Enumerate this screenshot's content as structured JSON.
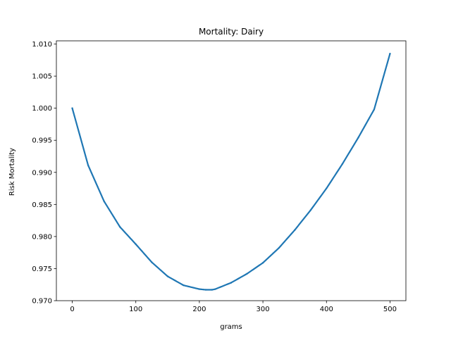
{
  "chart_data": {
    "type": "scatter",
    "title": "Mortality: Dairy",
    "xlabel": "grams",
    "ylabel": "Risk Mortality",
    "xlim": [
      -25,
      525
    ],
    "ylim": [
      0.97,
      1.0105
    ],
    "xticks": [
      0,
      100,
      200,
      300,
      400,
      500
    ],
    "xtick_labels": [
      "0",
      "100",
      "200",
      "300",
      "400",
      "500"
    ],
    "yticks": [
      0.97,
      0.975,
      0.98,
      0.985,
      0.99,
      0.995,
      1.0,
      1.005,
      1.01
    ],
    "ytick_labels": [
      "0.970",
      "0.975",
      "0.980",
      "0.985",
      "0.990",
      "0.995",
      "1.000",
      "1.005",
      "1.010"
    ],
    "grid": false,
    "legend": "none",
    "series_color": "#1f77b4",
    "series": [
      {
        "x": [
          0,
          25,
          50,
          75,
          100,
          125,
          150,
          175,
          200,
          210,
          220,
          225,
          250,
          275,
          300,
          325,
          350,
          375,
          400,
          425,
          450,
          475,
          500
        ],
        "y": [
          1.0,
          0.9911,
          0.9855,
          0.9815,
          0.9788,
          0.976,
          0.9738,
          0.9724,
          0.9718,
          0.9717,
          0.9717,
          0.9718,
          0.9728,
          0.9742,
          0.9759,
          0.9782,
          0.981,
          0.9841,
          0.9875,
          0.9913,
          0.9954,
          0.9998,
          1.0085
        ]
      }
    ]
  }
}
